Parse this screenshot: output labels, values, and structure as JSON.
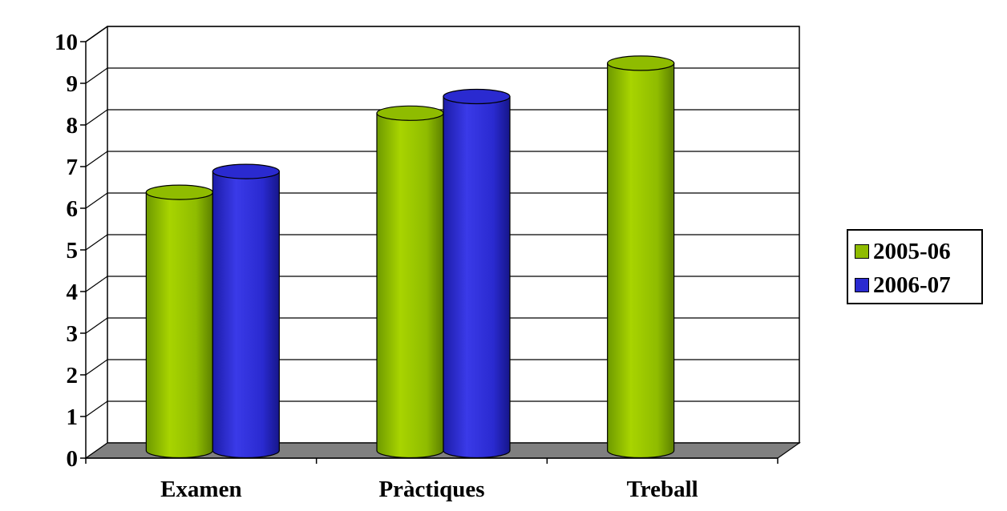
{
  "chart_data": {
    "type": "bar",
    "title": "",
    "xlabel": "",
    "ylabel": "",
    "categories": [
      "Examen",
      "Pràctiques",
      "Treball"
    ],
    "series": [
      {
        "name": "2005-06",
        "values": [
          6.2,
          8.1,
          9.3
        ],
        "color": "#8fbc00"
      },
      {
        "name": "2006-07",
        "values": [
          6.7,
          8.5,
          null
        ],
        "color": "#2a2ad0"
      }
    ],
    "ylim": [
      0,
      10
    ],
    "yticks": [
      0,
      1,
      2,
      3,
      4,
      5,
      6,
      7,
      8,
      9,
      10
    ],
    "grid": true,
    "legend_position": "right",
    "style": "3d-cylinder",
    "floor_color": "#808080"
  }
}
